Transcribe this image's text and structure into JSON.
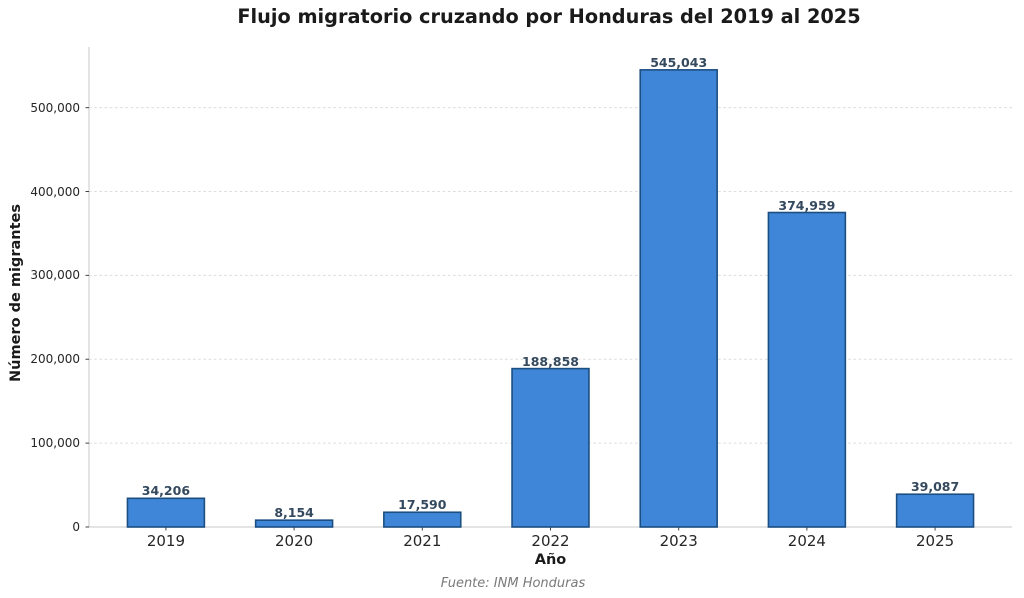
{
  "title": "Flujo migratorio cruzando por Honduras del 2019 al 2025",
  "source_note": "Fuente: INM Honduras",
  "chart_data": {
    "type": "bar",
    "title": "Flujo migratorio cruzando por Honduras del 2019 al 2025",
    "xlabel": "Año",
    "ylabel": "Número de migrantes",
    "categories": [
      "2019",
      "2020",
      "2021",
      "2022",
      "2023",
      "2024",
      "2025"
    ],
    "values": [
      34206,
      8154,
      17590,
      188858,
      545043,
      374959,
      39087
    ],
    "value_labels": [
      "34,206",
      "8,154",
      "17,590",
      "188,858",
      "545,043",
      "374,959",
      "39,087"
    ],
    "yticks": [
      0,
      100000,
      200000,
      300000,
      400000,
      500000
    ],
    "ytick_labels": [
      "0",
      "100,000",
      "200,000",
      "300,000",
      "400,000",
      "500,000"
    ],
    "ylim": [
      0,
      572295
    ],
    "grid": "horizontal dashed",
    "legend": "none",
    "annotation": "Fuente: INM Honduras",
    "colors": {
      "bar_fill": "#3f86d8",
      "bar_edge": "#1c4e80",
      "value_label": "#34495e",
      "gridline": "#dcdcdc",
      "spine": "#c9c9c9",
      "tick_mark": "#444444",
      "tick_label": "#262626",
      "title_text": "#1a1a1a",
      "source_text": "#7a7a7a"
    }
  }
}
